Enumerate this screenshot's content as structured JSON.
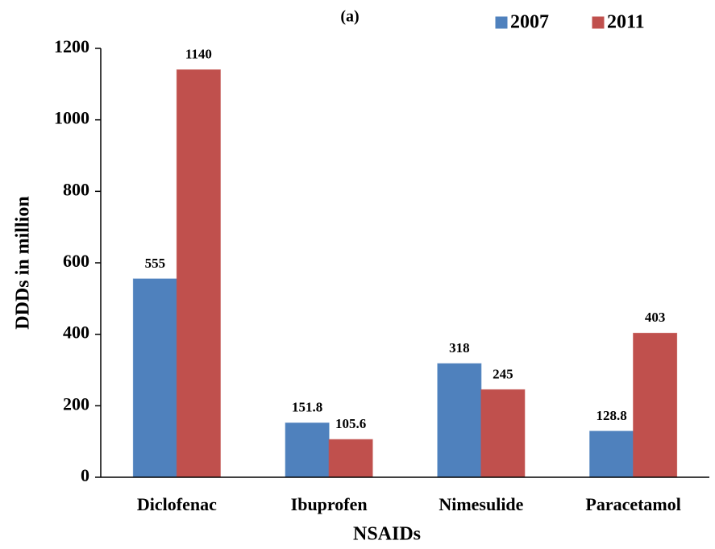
{
  "chart_data": {
    "type": "bar",
    "title": "(a)",
    "categories": [
      "Diclofenac",
      "Ibuprofen",
      "Nimesulide",
      "Paracetamol"
    ],
    "series": [
      {
        "name": "2007",
        "color": "#4f81bd",
        "values": [
          555,
          151.8,
          318,
          128.8
        ]
      },
      {
        "name": "2011",
        "color": "#c0504d",
        "values": [
          1140,
          105.6,
          245,
          403
        ]
      }
    ],
    "xlabel": "NSAIDs",
    "ylabel": "DDDs in million",
    "ylim": [
      0,
      1200
    ],
    "yticks": [
      0,
      200,
      400,
      600,
      800,
      1000,
      1200
    ],
    "grid": false
  }
}
